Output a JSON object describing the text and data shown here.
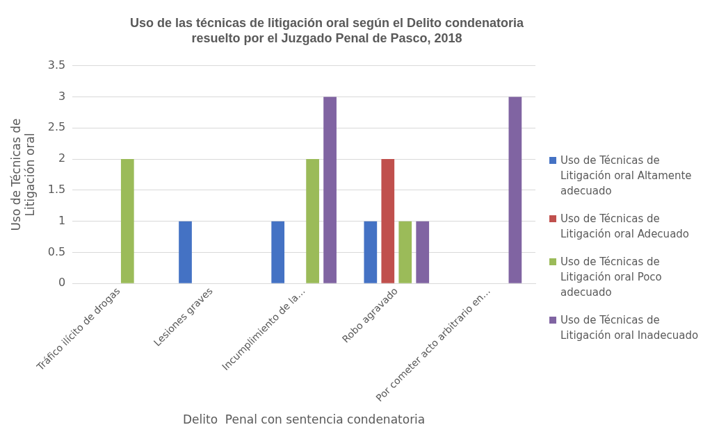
{
  "chart_data": {
    "type": "bar",
    "title": "Uso de las técnicas de litigación oral según el Delito condenatoria resuelto por el Juzgado Penal de Pasco, 2018",
    "xlabel": "Delito  Penal con sentencia condenatoria",
    "ylabel": "Uso de Técnicas de Litigación oral",
    "categories": [
      "Tráfico ilícito de drogas",
      "Lesiones graves",
      "Incumplimiento de la…",
      "Robo agravado",
      "Por cometer acto arbitrario en…"
    ],
    "series": [
      {
        "name": "Uso de Técnicas de Litigación oral Altamente adecuado",
        "color": "#4472c4",
        "values": [
          0,
          1,
          1,
          1,
          0
        ]
      },
      {
        "name": "Uso de Técnicas de Litigación oral Adecuado",
        "color": "#c0504d",
        "values": [
          0,
          0,
          0,
          2,
          0
        ]
      },
      {
        "name": "Uso de Técnicas de Litigación oral Poco adecuado",
        "color": "#9bbb59",
        "values": [
          2,
          0,
          2,
          1,
          0
        ]
      },
      {
        "name": "Uso de Técnicas de Litigación oral Inadecuado",
        "color": "#8064a2",
        "values": [
          0,
          0,
          3,
          1,
          3
        ]
      }
    ],
    "ylim": [
      0,
      3.5
    ],
    "yticks": [
      0,
      0.5,
      1,
      1.5,
      2,
      2.5,
      3,
      3.5
    ],
    "grid": "y",
    "legend": "right"
  }
}
